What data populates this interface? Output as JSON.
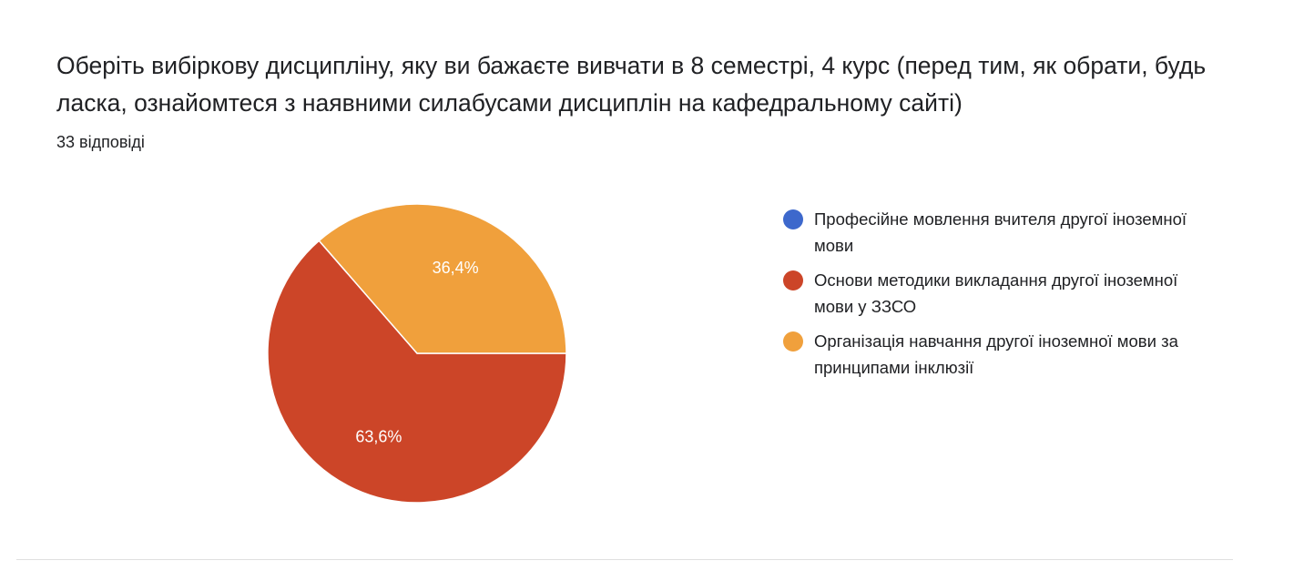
{
  "header": {
    "title": "Оберіть вибіркову дисципліну, яку ви бажаєте вивчати в 8 семестрі, 4 курс  (перед тим, як обрати, будь ласка, ознайомтеся з наявними силабусами дисциплін на кафедральному сайті)",
    "responses": "33 відповіді"
  },
  "chart_data": {
    "type": "pie",
    "title": "Оберіть вибіркову дисципліну, яку ви бажаєте вивчати в 8 семестрі, 4 курс  (перед тим, як обрати, будь ласка, ознайомтеся з наявними силабусами дисциплін на кафедральному сайті)",
    "total_responses": 33,
    "legend_position": "right",
    "slices": [
      {
        "label": "Професійне мовлення вчителя другої іноземної мови",
        "value": 0,
        "percent_label": "",
        "color": "#3d68cc"
      },
      {
        "label": "Основи методики викладання другої іноземної мови у ЗЗСО",
        "value": 63.6,
        "percent_label": "63,6%",
        "color": "#cc4528"
      },
      {
        "label": "Організація навчання другої іноземної мови за принципами інклюзії",
        "value": 36.4,
        "percent_label": "36,4%",
        "color": "#f0a03c"
      }
    ]
  }
}
